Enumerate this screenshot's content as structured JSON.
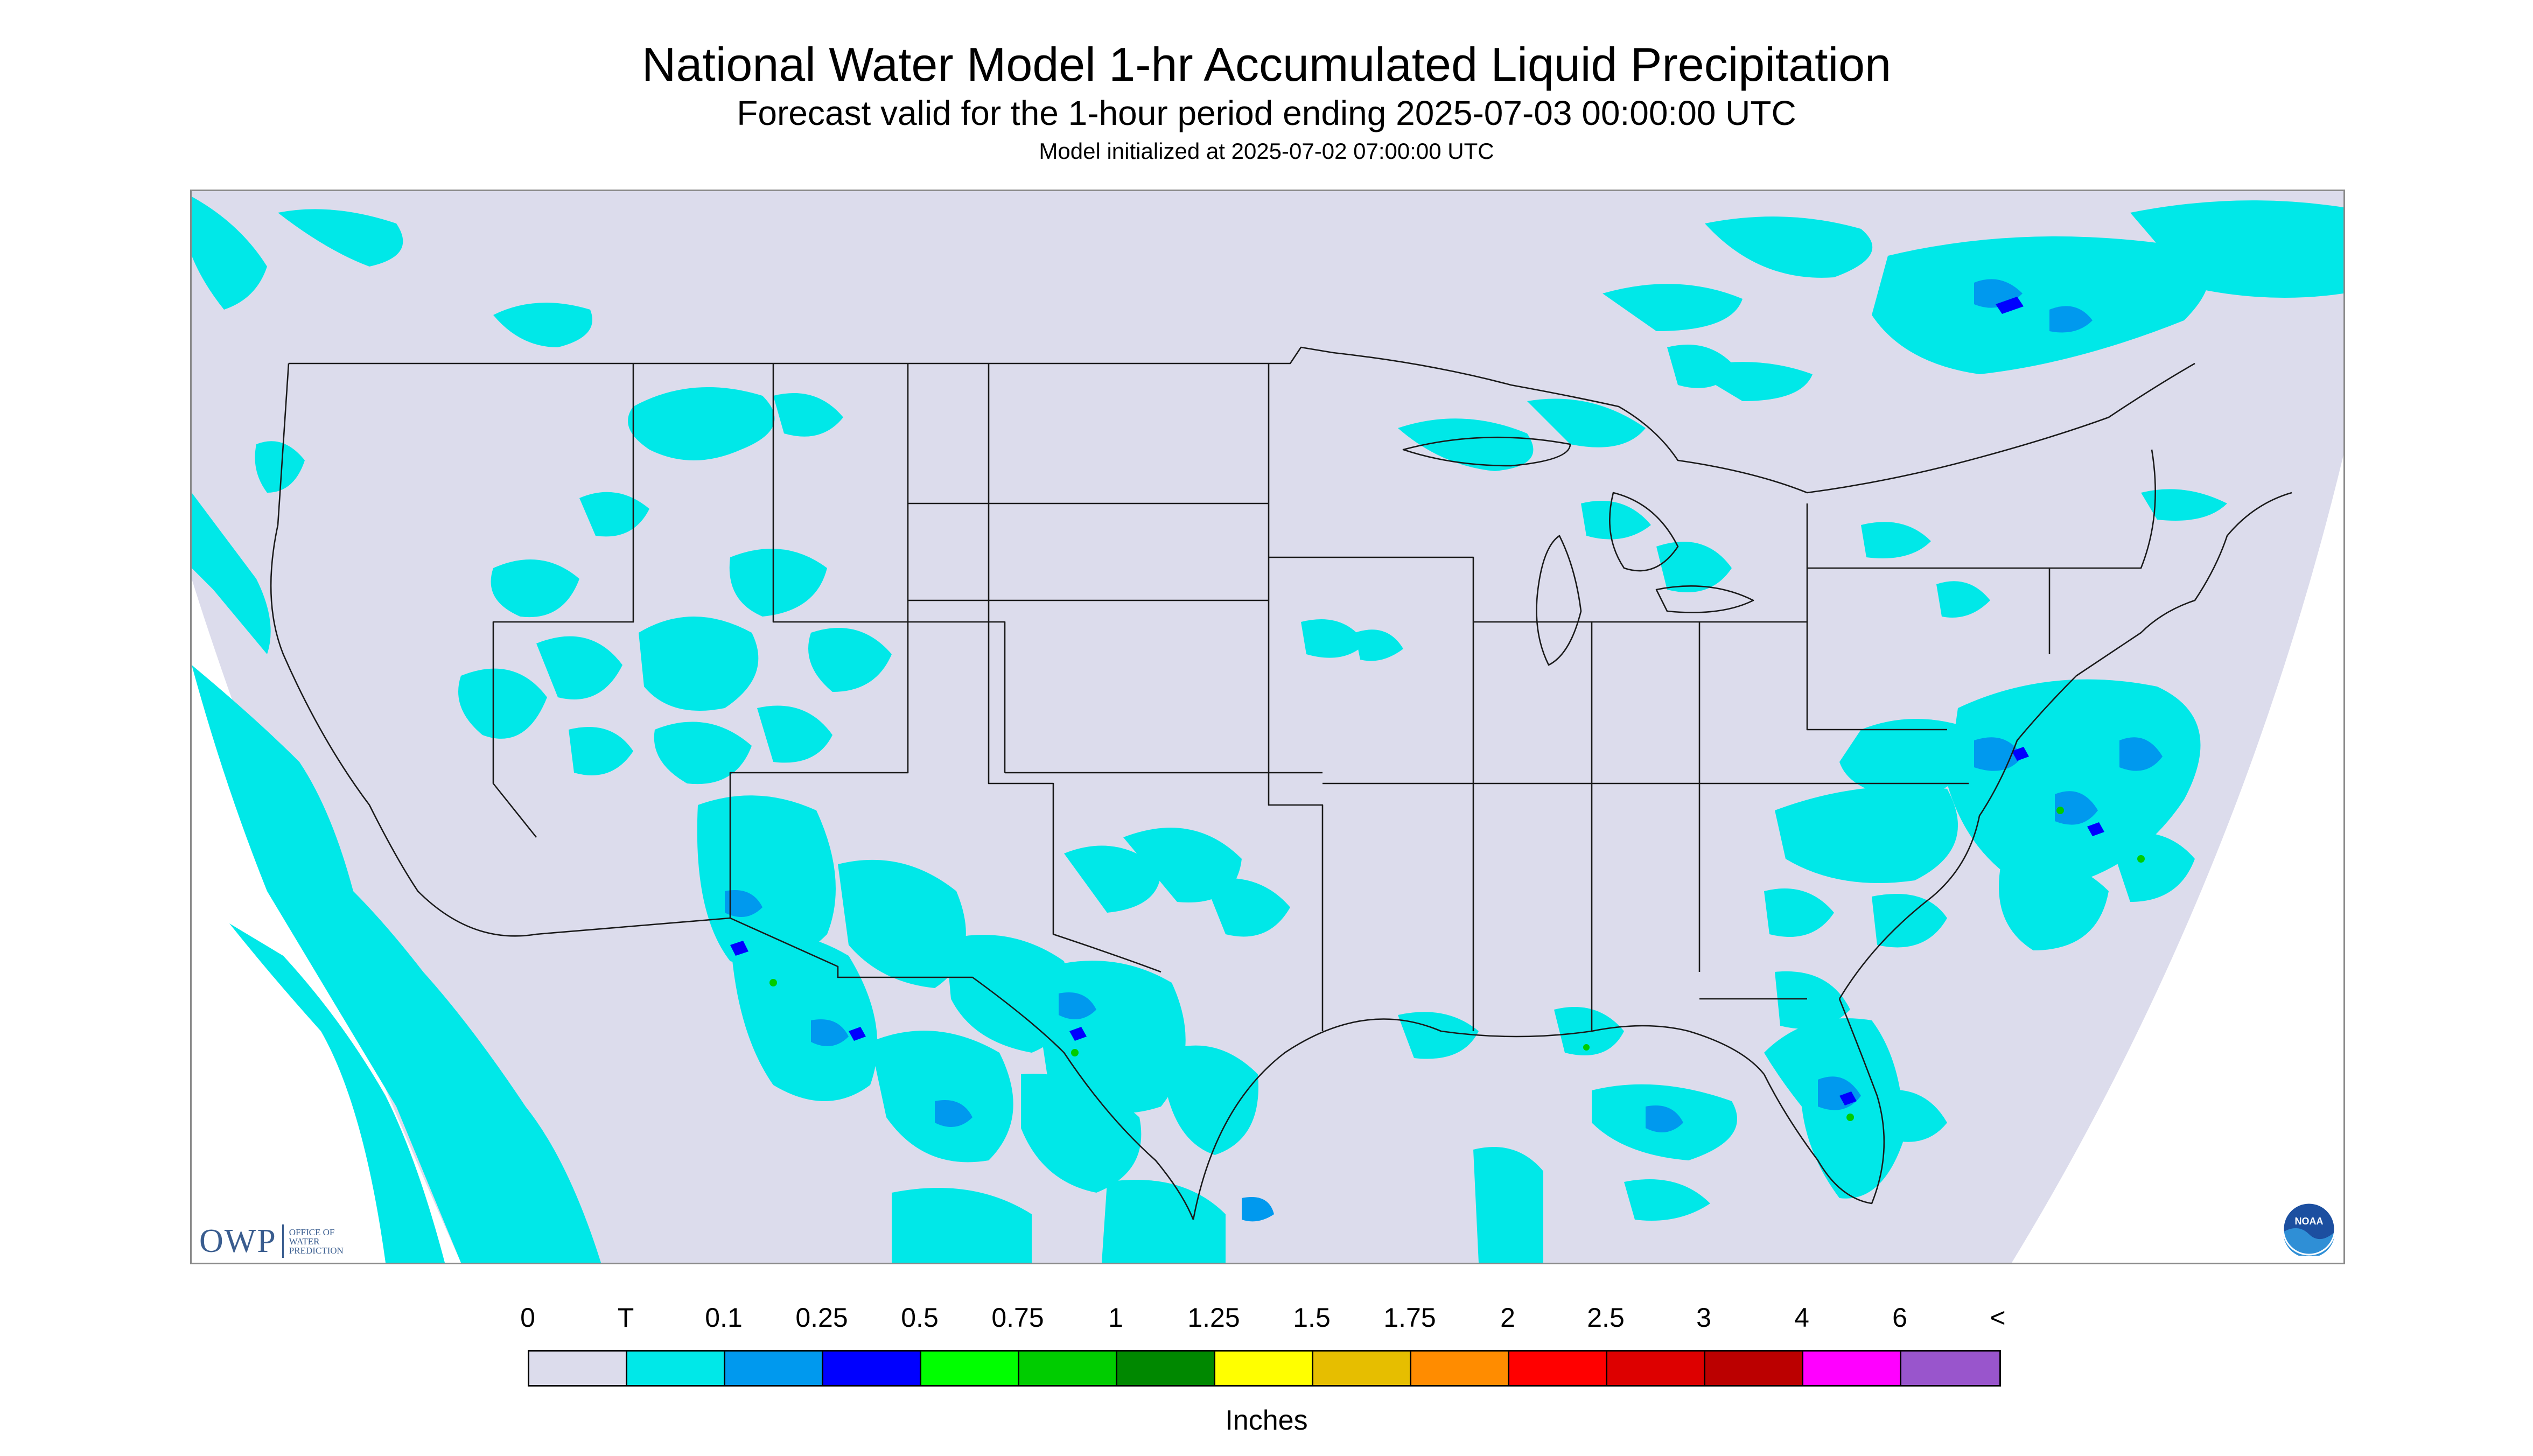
{
  "header": {
    "title": "National Water Model 1-hr Accumulated Liquid Precipitation",
    "subtitle": "Forecast valid for the 1-hour period ending 2025-07-03 00:00:00 UTC",
    "init_line": "Model initialized at 2025-07-02 07:00:00 UTC"
  },
  "map": {
    "region": "CONUS",
    "background_color": "#dcdcec",
    "outside_color": "#ffffff",
    "trace_color": "#00e8e8",
    "light_color": "#0099ee",
    "medium_color": "#0000ff",
    "heavy_color": "#00cc00"
  },
  "logos": {
    "owp_letters": "OWP",
    "owp_subtitle": "OFFICE OF WATER PREDICTION",
    "noaa_text": "NOAA"
  },
  "legend": {
    "labels": [
      "0",
      "T",
      "0.1",
      "0.25",
      "0.5",
      "0.75",
      "1",
      "1.25",
      "1.5",
      "1.75",
      "2",
      "2.5",
      "3",
      "4",
      "6",
      "<"
    ],
    "colors": [
      "#dcdcec",
      "#00e8e8",
      "#0099ee",
      "#0000ff",
      "#00ff00",
      "#00cc00",
      "#008800",
      "#ffff00",
      "#e6be00",
      "#ff8c00",
      "#ff0000",
      "#dd0000",
      "#bb0000",
      "#ff00ff",
      "#9955cc"
    ],
    "units": "Inches"
  }
}
